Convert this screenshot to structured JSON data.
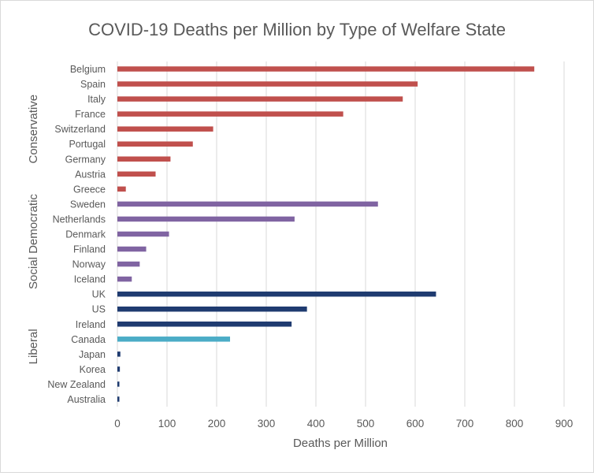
{
  "chart_data": {
    "type": "bar",
    "orientation": "horizontal",
    "title": "COVID-19 Deaths per Million by Type of Welfare State",
    "xlabel": "Deaths per Million",
    "ylabel": "",
    "xlim": [
      0,
      900
    ],
    "xticks": [
      0,
      100,
      200,
      300,
      400,
      500,
      600,
      700,
      800,
      900
    ],
    "grid": "vertical",
    "groups": [
      {
        "label": "Conservative",
        "color": "#c0504d",
        "bars": [
          {
            "category": "Belgium",
            "value": 840
          },
          {
            "category": "Spain",
            "value": 605
          },
          {
            "category": "Italy",
            "value": 575
          },
          {
            "category": "France",
            "value": 455
          },
          {
            "category": "Switzerland",
            "value": 193
          },
          {
            "category": "Portugal",
            "value": 152
          },
          {
            "category": "Germany",
            "value": 107
          },
          {
            "category": "Austria",
            "value": 77
          },
          {
            "category": "Greece",
            "value": 17
          }
        ]
      },
      {
        "label": "Social Democratic",
        "color": "#8064a2",
        "bars": [
          {
            "category": "Sweden",
            "value": 525
          },
          {
            "category": "Netherlands",
            "value": 357
          },
          {
            "category": "Denmark",
            "value": 104
          },
          {
            "category": "Finland",
            "value": 58
          },
          {
            "category": "Norway",
            "value": 45
          },
          {
            "category": "Iceland",
            "value": 29
          }
        ]
      },
      {
        "label": "Liberal",
        "color": "#1f3b70",
        "bars": [
          {
            "category": "UK",
            "value": 642
          },
          {
            "category": "US",
            "value": 382
          },
          {
            "category": "Ireland",
            "value": 351
          },
          {
            "category": "Canada",
            "value": 227,
            "color": "#4bacc6"
          },
          {
            "category": "Japan",
            "value": 6
          },
          {
            "category": "Korea",
            "value": 5
          },
          {
            "category": "New Zealand",
            "value": 4
          },
          {
            "category": "Australia",
            "value": 4
          }
        ]
      }
    ]
  }
}
